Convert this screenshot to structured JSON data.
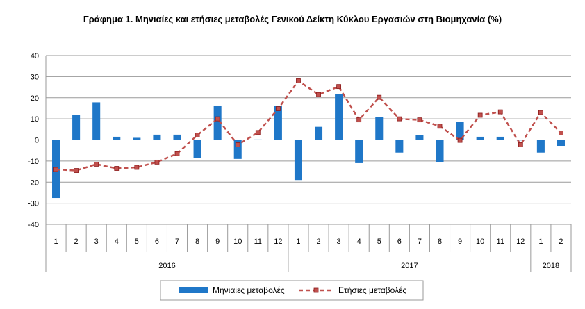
{
  "chart_data": {
    "type": "bar+line",
    "title": "Γράφημα 1. Μηνιαίες και ετήσιες μεταβολές  Γενικού Δείκτη Κύκλου Εργασιών στη Βιομηχανία (%)",
    "categories": [
      "1",
      "2",
      "3",
      "4",
      "5",
      "6",
      "7",
      "8",
      "9",
      "10",
      "11",
      "12",
      "1",
      "2",
      "3",
      "4",
      "5",
      "6",
      "7",
      "8",
      "9",
      "10",
      "11",
      "12",
      "1",
      "2"
    ],
    "year_groups": [
      {
        "label": "2016",
        "count": 12
      },
      {
        "label": "2017",
        "count": 12
      },
      {
        "label": "2018",
        "count": 2
      }
    ],
    "ylim": [
      -40,
      40
    ],
    "yticks": [
      40,
      30,
      20,
      10,
      0,
      -10,
      -20,
      -30,
      -40
    ],
    "grid": true,
    "legend_position": "bottom-center",
    "series": [
      {
        "name": "Μηνιαίες μεταβολές",
        "kind": "bar",
        "color": "#1f77c8",
        "values": [
          -27.5,
          11.8,
          17.8,
          1.5,
          1.0,
          2.5,
          2.5,
          -8.5,
          16.3,
          -9.0,
          0.2,
          16.0,
          -19.0,
          6.2,
          21.8,
          -11.0,
          10.7,
          -6.0,
          2.3,
          -10.5,
          8.5,
          1.5,
          1.5,
          -0.2,
          -6.0,
          -2.8
        ]
      },
      {
        "name": "Ετήσιες μεταβολές",
        "kind": "line",
        "color": "#c0504d",
        "marker_color": "#c0504d",
        "values": [
          -14.0,
          -14.5,
          -11.5,
          -13.5,
          -13.0,
          -10.5,
          -6.5,
          2.3,
          10.0,
          -2.3,
          3.5,
          14.8,
          28.0,
          21.5,
          25.3,
          9.5,
          20.2,
          10.0,
          9.5,
          6.5,
          -0.2,
          11.7,
          13.3,
          -2.3,
          13.0,
          3.3
        ]
      }
    ]
  }
}
